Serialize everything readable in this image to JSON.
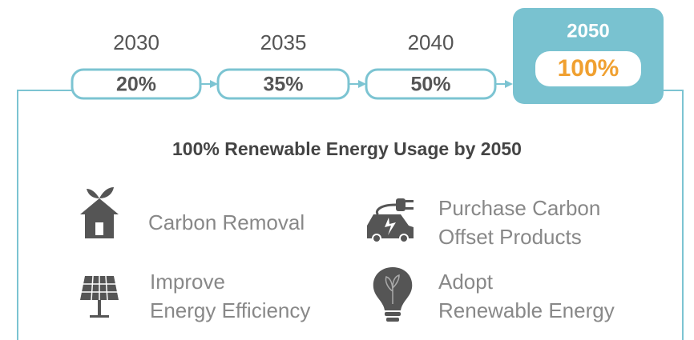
{
  "milestones": [
    {
      "year": "2030",
      "value": "20%"
    },
    {
      "year": "2035",
      "value": "35%"
    },
    {
      "year": "2040",
      "value": "50%"
    },
    {
      "year": "2050",
      "value": "100%"
    }
  ],
  "title": "100% Renewable Energy Usage by 2050",
  "actions": [
    {
      "lines": [
        "Carbon Removal"
      ]
    },
    {
      "lines": [
        "Purchase Carbon",
        "Offset Products"
      ]
    },
    {
      "lines": [
        "Improve",
        "Energy Efficiency"
      ]
    },
    {
      "lines": [
        "Adopt",
        "Renewable Energy"
      ]
    }
  ]
}
